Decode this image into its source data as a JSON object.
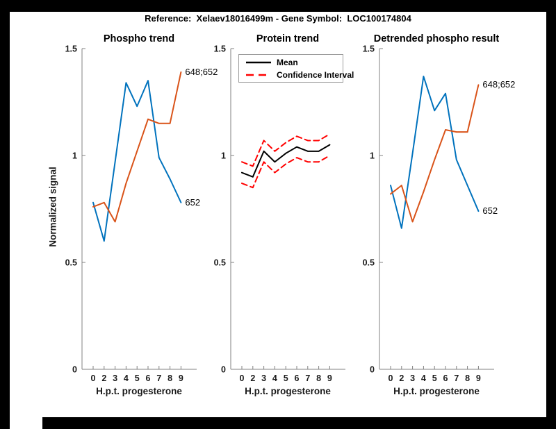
{
  "figure": {
    "title": "Reference:  Xelaev18016499m - Gene Symbol:  LOC100174804",
    "background_color": "#000000",
    "canvas_color": "#ffffff"
  },
  "axes": {
    "xlabel": "H.p.t. progesterone",
    "ylabel": "Normalized signal",
    "x_tick_labels": [
      "0",
      "2",
      "3",
      "4",
      "5",
      "6",
      "7",
      "8",
      "9"
    ],
    "y_tick_labels": [
      "0",
      "0.5",
      "1",
      "1.5"
    ],
    "y_tick_values": [
      0,
      0.5,
      1,
      1.5
    ],
    "ylim": [
      0,
      1.5
    ],
    "axis_color": "#808080",
    "grid": "off"
  },
  "legend": {
    "position": "north",
    "items": [
      {
        "label": "Mean",
        "color": "#000000",
        "style": "solid"
      },
      {
        "label": "Confidence Interval",
        "color": "#ff0000",
        "style": "dashed"
      }
    ]
  },
  "chart_data": [
    {
      "type": "line",
      "title": "Phospho trend",
      "xlabel": "H.p.t. progesterone",
      "ylabel": "Normalized signal",
      "categories": [
        "0",
        "2",
        "3",
        "4",
        "5",
        "6",
        "7",
        "8",
        "9"
      ],
      "ylim": [
        0,
        1.5
      ],
      "series": [
        {
          "name": "652",
          "color": "#0072BD",
          "style": "solid",
          "label": "652",
          "values": [
            0.78,
            0.6,
            0.97,
            1.34,
            1.23,
            1.35,
            0.99,
            0.89,
            0.78
          ]
        },
        {
          "name": "648;652",
          "color": "#D95319",
          "style": "solid",
          "label": "648;652",
          "values": [
            0.76,
            0.78,
            0.69,
            0.87,
            1.02,
            1.17,
            1.15,
            1.15,
            1.39
          ]
        }
      ]
    },
    {
      "type": "line",
      "title": "Protein trend",
      "xlabel": "H.p.t. progesterone",
      "categories": [
        "0",
        "2",
        "3",
        "4",
        "5",
        "6",
        "7",
        "8",
        "9"
      ],
      "ylim": [
        0,
        1.5
      ],
      "legend_entries": [
        "Mean",
        "Confidence Interval"
      ],
      "series": [
        {
          "name": "Mean",
          "color": "#000000",
          "style": "solid",
          "values": [
            0.92,
            0.9,
            1.02,
            0.97,
            1.01,
            1.04,
            1.02,
            1.02,
            1.05
          ]
        },
        {
          "name": "Confidence Interval upper",
          "color": "#ff0000",
          "style": "dashed",
          "values": [
            0.97,
            0.95,
            1.07,
            1.02,
            1.06,
            1.09,
            1.07,
            1.07,
            1.1
          ]
        },
        {
          "name": "Confidence Interval lower",
          "color": "#ff0000",
          "style": "dashed",
          "values": [
            0.87,
            0.85,
            0.97,
            0.92,
            0.96,
            0.99,
            0.97,
            0.97,
            1.0
          ]
        }
      ]
    },
    {
      "type": "line",
      "title": "Detrended phospho result",
      "xlabel": "H.p.t. progesterone",
      "categories": [
        "0",
        "2",
        "3",
        "4",
        "5",
        "6",
        "7",
        "8",
        "9"
      ],
      "ylim": [
        0,
        1.5
      ],
      "series": [
        {
          "name": "652",
          "color": "#0072BD",
          "style": "solid",
          "label": "652",
          "values": [
            0.86,
            0.66,
            1.01,
            1.37,
            1.21,
            1.29,
            0.98,
            0.86,
            0.74
          ]
        },
        {
          "name": "648;652",
          "color": "#D95319",
          "style": "solid",
          "label": "648;652",
          "values": [
            0.82,
            0.86,
            0.69,
            0.83,
            0.98,
            1.12,
            1.11,
            1.11,
            1.33
          ]
        }
      ]
    }
  ]
}
